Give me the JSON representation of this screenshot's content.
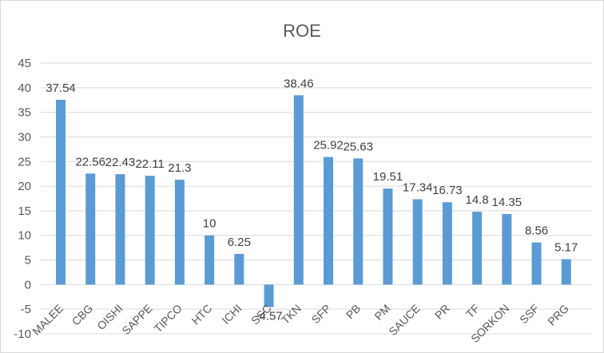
{
  "chart_data": {
    "type": "bar",
    "title": "ROE",
    "xlabel": "",
    "ylabel": "",
    "ylim": [
      -10,
      45
    ],
    "yticks": [
      -10,
      -5,
      0,
      5,
      10,
      15,
      20,
      25,
      30,
      35,
      40,
      45
    ],
    "grid": true,
    "legend": "none",
    "bar_color": "#5b9bd5",
    "categories": [
      "MALEE",
      "CBG",
      "OISHI",
      "SAPPE",
      "TIPCO",
      "HTC",
      "ICHI",
      "SSC",
      "TKN",
      "SFP",
      "PB",
      "PM",
      "SAUCE",
      "PR",
      "TF",
      "SORKON",
      "SSF",
      "PRG"
    ],
    "values": [
      37.54,
      22.56,
      22.43,
      22.11,
      21.3,
      10,
      6.25,
      -4.57,
      38.46,
      25.92,
      25.63,
      19.51,
      17.34,
      16.73,
      14.8,
      14.35,
      8.56,
      5.17
    ],
    "value_labels": [
      "37.54",
      "22.56",
      "22.43",
      "22.11",
      "21.3",
      "10",
      "6.25",
      "-4.57",
      "38.46",
      "25.92",
      "25.63",
      "19.51",
      "17.34",
      "16.73",
      "14.8",
      "14.35",
      "8.56",
      "5.17"
    ]
  }
}
